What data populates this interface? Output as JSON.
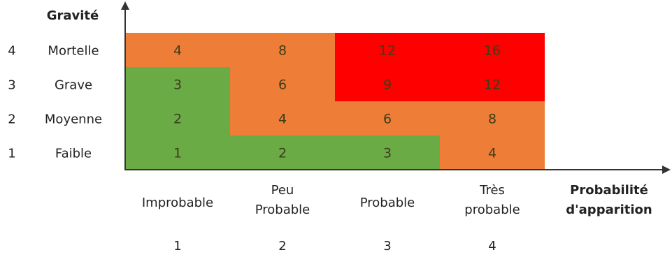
{
  "chart_data": {
    "type": "heatmap",
    "title": "",
    "ylabel": "Gravité",
    "xlabel_lines": [
      "Probabilité",
      "d'apparition"
    ],
    "x_categories": [
      {
        "lines": [
          "Improbable"
        ],
        "level": "1"
      },
      {
        "lines": [
          "Peu",
          "Probable"
        ],
        "level": "2"
      },
      {
        "lines": [
          "Probable"
        ],
        "level": "3"
      },
      {
        "lines": [
          "Très",
          "probable"
        ],
        "level": "4"
      }
    ],
    "y_categories": [
      {
        "label": "Faible",
        "level": "1"
      },
      {
        "label": "Moyenne",
        "level": "2"
      },
      {
        "label": "Grave",
        "level": "3"
      },
      {
        "label": "Mortelle",
        "level": "4"
      }
    ],
    "cells": [
      [
        1,
        2,
        3,
        4
      ],
      [
        2,
        4,
        6,
        8
      ],
      [
        3,
        6,
        9,
        12
      ],
      [
        4,
        8,
        12,
        16
      ]
    ],
    "cell_colors": [
      [
        "green",
        "green",
        "green",
        "orange"
      ],
      [
        "green",
        "orange",
        "orange",
        "orange"
      ],
      [
        "green",
        "orange",
        "red",
        "red"
      ],
      [
        "orange",
        "orange",
        "red",
        "red"
      ]
    ],
    "palette": {
      "green": "#6aab45",
      "orange": "#ee7d37",
      "red": "#fe0000"
    },
    "text_color": "#3d3d1a",
    "axis_color": "#333333",
    "grid": false
  }
}
